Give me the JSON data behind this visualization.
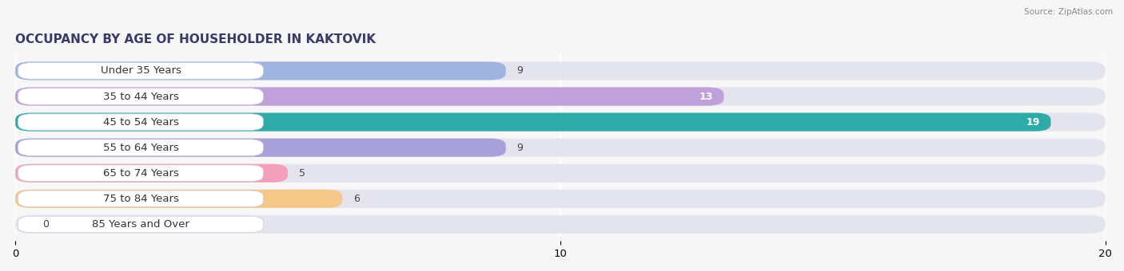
{
  "title": "OCCUPANCY BY AGE OF HOUSEHOLDER IN KAKTOVIK",
  "source": "Source: ZipAtlas.com",
  "categories": [
    "Under 35 Years",
    "35 to 44 Years",
    "45 to 54 Years",
    "55 to 64 Years",
    "65 to 74 Years",
    "75 to 84 Years",
    "85 Years and Over"
  ],
  "values": [
    9,
    13,
    19,
    9,
    5,
    6,
    0
  ],
  "bar_colors": [
    "#a0b4e0",
    "#c0a0d8",
    "#2eaaa8",
    "#a8a0d8",
    "#f4a0bc",
    "#f5c88a",
    "#f0b0b0"
  ],
  "bar_bg_color": "#e4e4ee",
  "label_bg_color": "#ffffff",
  "xlim": [
    0,
    20
  ],
  "xticks": [
    0,
    10,
    20
  ],
  "title_fontsize": 11,
  "label_fontsize": 9.5,
  "value_fontsize": 9,
  "background_color": "#f7f7f7",
  "grid_color": "#ffffff",
  "value_inside_threshold": 10
}
